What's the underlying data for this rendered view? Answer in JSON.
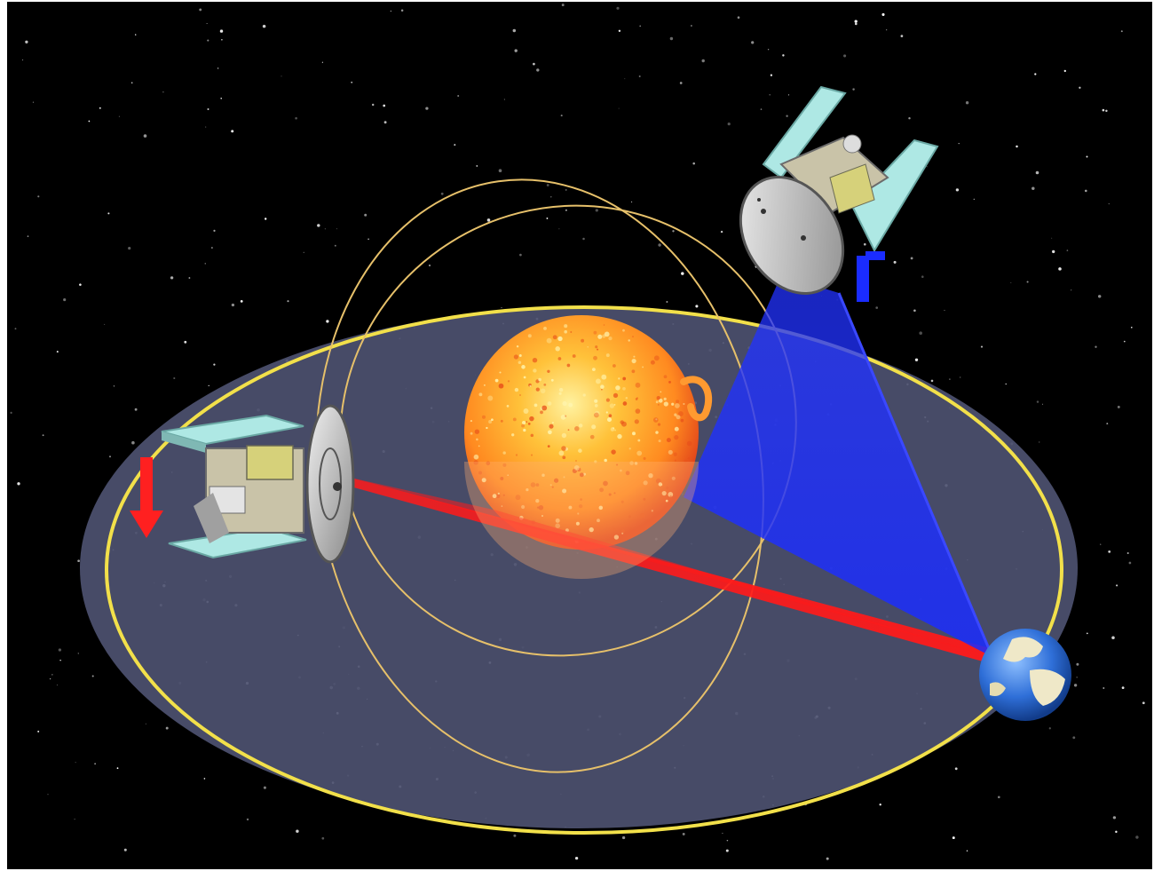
{
  "colors": {
    "space": "#000000",
    "ecliptic_plane": "#4d5170",
    "earth_orbit": "#f2e04a",
    "spacecraft_orbit": "#e6c06a",
    "red_view": "#ff1a1a",
    "blue_view": "#1a2cff",
    "sun_core": "#ffd04a",
    "sun_edge": "#e8461a",
    "earth_ocean": "#2f6fd8",
    "earth_land": "#efe8c8",
    "solar_panel": "#aee8e4",
    "instrument": "#cfd08a",
    "motion_arrow": "#ff2020"
  },
  "scene": {
    "objects": [
      "sun",
      "earth",
      "spacecraft-near-ecliptic",
      "spacecraft-out-of-ecliptic",
      "earth-orbit",
      "inclined-orbit",
      "motion-arrow"
    ]
  }
}
